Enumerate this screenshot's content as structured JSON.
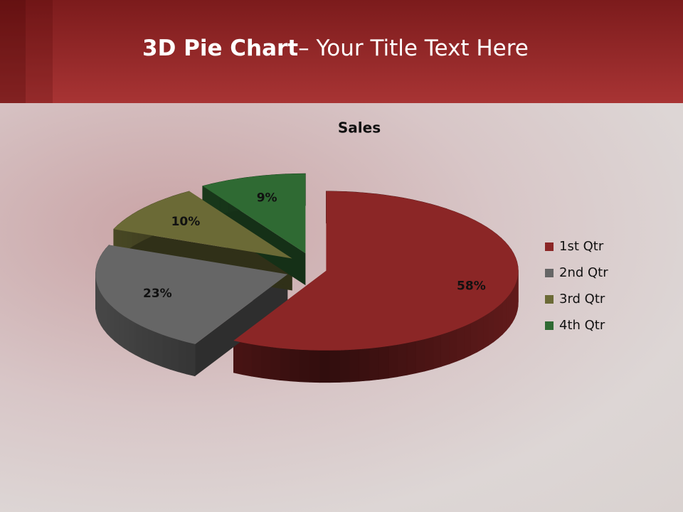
{
  "slide": {
    "title_bold": "3D Pie Chart",
    "title_rest": "– Your Title Text Here"
  },
  "chart_data": {
    "type": "pie",
    "title": "Sales",
    "categories": [
      "1st Qtr",
      "2nd Qtr",
      "3rd Qtr",
      "4th Qtr"
    ],
    "values": [
      58,
      23,
      10,
      9
    ],
    "value_labels": [
      "58%",
      "23%",
      "10%",
      "9%"
    ],
    "colors": [
      "#8b2626",
      "#666666",
      "#6b6a36",
      "#2f6a33"
    ],
    "legend": "right"
  }
}
